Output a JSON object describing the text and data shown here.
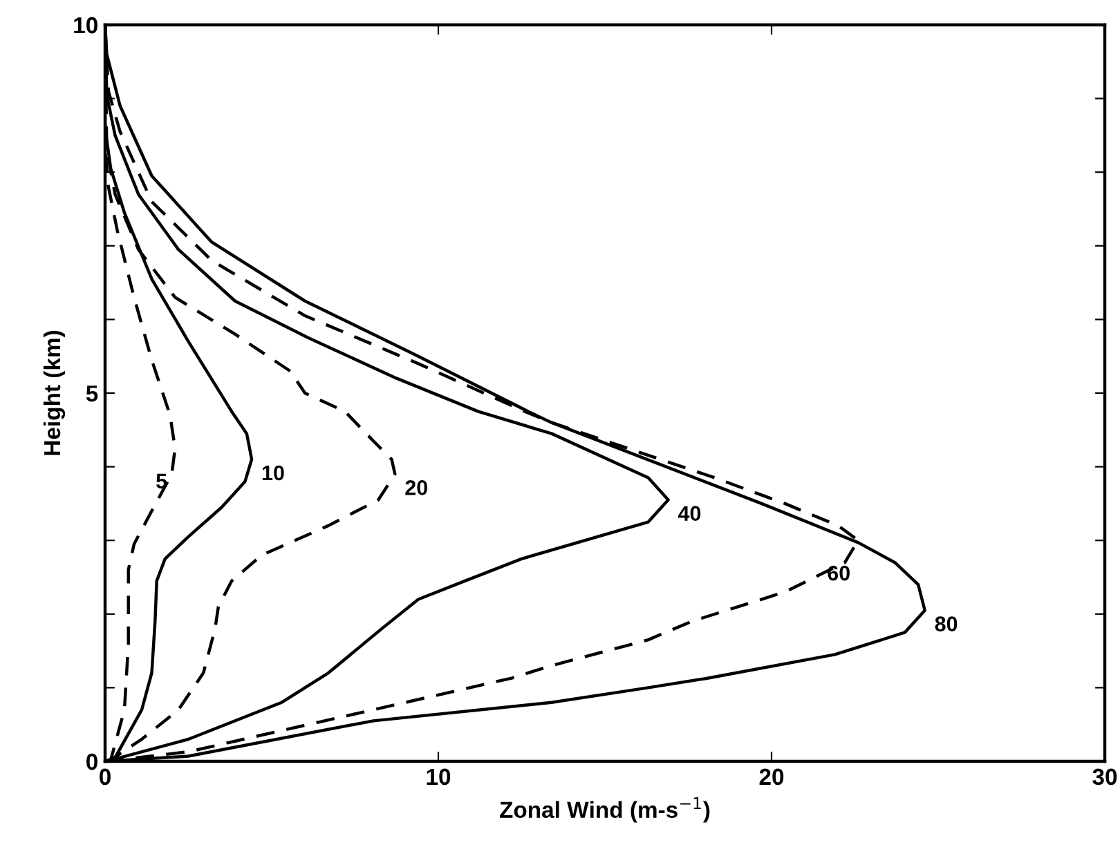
{
  "chart_data": {
    "type": "line",
    "xlabel": "Zonal Wind (m-s$^{−1}$)",
    "ylabel": "Height (km)",
    "xlim": [
      0,
      30
    ],
    "xticks": [
      0,
      10,
      20,
      30
    ],
    "ylim": [
      0,
      10
    ],
    "yticks": [
      0,
      {
        "value": 1,
        "label": null
      },
      {
        "value": 2,
        "label": null
      },
      {
        "value": 3,
        "label": null
      },
      {
        "value": 4,
        "label": null
      },
      5,
      {
        "value": 6,
        "label": null
      },
      {
        "value": 7,
        "label": null
      },
      {
        "value": 8,
        "label": null
      },
      {
        "value": 9,
        "label": null
      },
      10
    ],
    "grid": false,
    "legend": false,
    "marker": "none",
    "series": [
      {
        "name": "5",
        "color": "#000000",
        "line_style": "dashed",
        "x": [
          0,
          0.17,
          0.58,
          0.7,
          0.7,
          0.87,
          1.4,
          2.0,
          2.1,
          1.95,
          1.4,
          0.87,
          0.37,
          0.1,
          0,
          0
        ],
        "values": [
          0,
          0.02,
          0.7,
          1.6,
          2.6,
          2.95,
          3.4,
          3.9,
          4.25,
          4.7,
          5.45,
          6.3,
          7.2,
          7.8,
          8.3,
          10
        ]
      },
      {
        "name": "10",
        "color": "#000000",
        "line_style": "solid",
        "x": [
          0,
          0.3,
          1.1,
          1.4,
          1.5,
          1.55,
          1.8,
          2.5,
          3.5,
          4.2,
          4.4,
          4.25,
          3.8,
          2.5,
          1.4,
          0.58,
          0.17,
          0,
          0
        ],
        "values": [
          0,
          0.05,
          0.7,
          1.2,
          1.9,
          2.45,
          2.75,
          3.05,
          3.45,
          3.8,
          4.1,
          4.45,
          4.75,
          5.7,
          6.55,
          7.45,
          8.05,
          8.6,
          10
        ]
      },
      {
        "name": "20",
        "color": "#000000",
        "line_style": "dashed",
        "x": [
          0,
          0.17,
          1.1,
          2.2,
          2.95,
          3.3,
          3.4,
          3.8,
          4.7,
          6.7,
          8.2,
          8.7,
          8.6,
          8.05,
          7.2,
          6.0,
          5.55,
          3.9,
          2.1,
          1.0,
          0.3,
          0.05,
          0
        ],
        "values": [
          0,
          0.02,
          0.3,
          0.7,
          1.2,
          1.8,
          2.1,
          2.45,
          2.8,
          3.2,
          3.55,
          3.9,
          4.1,
          4.35,
          4.75,
          5.0,
          5.3,
          5.8,
          6.3,
          6.95,
          7.7,
          8.3,
          10
        ]
      },
      {
        "name": "40",
        "color": "#000000",
        "line_style": "solid",
        "x": [
          0,
          0.2,
          2.5,
          5.3,
          6.7,
          8.3,
          9.4,
          10.8,
          12.5,
          16.3,
          16.9,
          16.3,
          13.4,
          11.2,
          8.75,
          6.1,
          3.9,
          2.2,
          1.0,
          0.3,
          0.05,
          0
        ],
        "values": [
          0,
          0.02,
          0.3,
          0.8,
          1.2,
          1.8,
          2.2,
          2.45,
          2.75,
          3.25,
          3.55,
          3.85,
          4.45,
          4.75,
          5.2,
          5.75,
          6.25,
          6.95,
          7.7,
          8.5,
          9.05,
          10
        ]
      },
      {
        "name": "60",
        "color": "#000000",
        "line_style": "dashed",
        "x": [
          0,
          2.5,
          8.05,
          12.2,
          13.4,
          16.3,
          17.6,
          20.4,
          22.2,
          22.6,
          22.0,
          20.4,
          18.3,
          13.4,
          12.6,
          9.4,
          6.0,
          3.2,
          1.4,
          0.45,
          0.1,
          0
        ],
        "values": [
          0,
          0.13,
          0.7,
          1.13,
          1.3,
          1.65,
          1.9,
          2.3,
          2.7,
          3.0,
          3.2,
          3.5,
          3.85,
          4.6,
          4.75,
          5.4,
          6.05,
          6.8,
          7.6,
          8.55,
          9.1,
          10
        ]
      },
      {
        "name": "80",
        "color": "#000000",
        "line_style": "solid",
        "x": [
          0,
          2.5,
          8.05,
          13.4,
          16.3,
          18.1,
          21.9,
          24.0,
          24.6,
          24.4,
          23.7,
          22.6,
          19.7,
          13.4,
          12.7,
          9.4,
          6.0,
          3.2,
          1.4,
          0.45,
          0.05,
          0
        ],
        "values": [
          0,
          0.07,
          0.55,
          0.8,
          1.0,
          1.13,
          1.45,
          1.75,
          2.05,
          2.4,
          2.7,
          2.97,
          3.5,
          4.6,
          4.75,
          5.5,
          6.25,
          7.05,
          7.95,
          8.9,
          9.6,
          10
        ]
      }
    ]
  }
}
